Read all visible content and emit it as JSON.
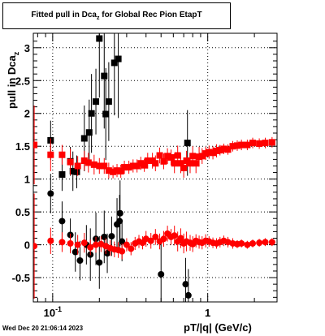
{
  "chart_data": {
    "type": "scatter",
    "title": "Fitted pull in Dca",
    "title_sub": "z",
    "title_suffix": " for Global Rec Pion EtapT",
    "xlabel": "pT/|q| (GeV/c)",
    "ylabel": "pull in Dca",
    "ylabel_sub": "z",
    "xscale": "log",
    "xlim": [
      0.075,
      2.8
    ],
    "ylim": [
      -0.87,
      3.22
    ],
    "grid": true,
    "x_ticks": [
      {
        "value": 0.1,
        "base": "10",
        "exp": "-1"
      },
      {
        "value": 1,
        "base": "1",
        "exp": ""
      }
    ],
    "y_ticks": [
      {
        "value": -0.5,
        "label": "-0.5"
      },
      {
        "value": 0,
        "label": "0"
      },
      {
        "value": 0.5,
        "label": "0.5"
      },
      {
        "value": 1,
        "label": "1"
      },
      {
        "value": 1.5,
        "label": "1.5"
      },
      {
        "value": 2,
        "label": "2"
      },
      {
        "value": 2.5,
        "label": "2.5"
      },
      {
        "value": 3,
        "label": "3"
      }
    ],
    "series": [
      {
        "color": "#000000",
        "marker": "square",
        "points": [
          [
            0.097,
            1.59,
            0.3
          ],
          [
            0.115,
            1.07,
            0.25
          ],
          [
            0.13,
            1.27,
            0.22
          ],
          [
            0.135,
            1.12,
            0.3
          ],
          [
            0.143,
            1.11,
            0.25
          ],
          [
            0.16,
            1.62,
            0.5
          ],
          [
            0.172,
            1.71,
            0.5
          ],
          [
            0.178,
            2.0,
            0.6
          ],
          [
            0.19,
            2.18,
            0.5
          ],
          [
            0.2,
            3.14,
            0.9
          ],
          [
            0.215,
            2.57,
            0.8
          ],
          [
            0.22,
            1.99,
            0.7
          ],
          [
            0.23,
            2.18,
            0.6
          ],
          [
            0.25,
            2.77,
            0.8
          ],
          [
            0.265,
            2.83,
            0.9
          ],
          [
            0.74,
            1.55,
            0.5
          ]
        ]
      },
      {
        "color": "#000000",
        "marker": "circle",
        "points": [
          [
            0.097,
            0.78,
            0.3
          ],
          [
            0.115,
            0.36,
            0.3
          ],
          [
            0.13,
            0.15,
            0.25
          ],
          [
            0.14,
            -0.11,
            0.3
          ],
          [
            0.15,
            -0.24,
            0.3
          ],
          [
            0.165,
            0.0,
            0.3
          ],
          [
            0.175,
            -0.15,
            0.4
          ],
          [
            0.19,
            0.09,
            0.4
          ],
          [
            0.2,
            -0.27,
            0.4
          ],
          [
            0.215,
            0.12,
            0.4
          ],
          [
            0.225,
            -0.13,
            0.3
          ],
          [
            0.24,
            0.13,
            0.3
          ],
          [
            0.26,
            0.31,
            0.4
          ],
          [
            0.27,
            0.36,
            0.4
          ],
          [
            0.272,
            0.48,
            0.5
          ],
          [
            0.28,
            0.05,
            0.3
          ],
          [
            0.5,
            -0.45,
            0.5
          ],
          [
            0.72,
            -0.6,
            0.4
          ],
          [
            0.75,
            -0.77,
            0.4
          ]
        ]
      },
      {
        "color": "#ff0000",
        "marker": "square",
        "points": [
          [
            0.076,
            1.52,
            0.6
          ],
          [
            0.097,
            1.37,
            0.25
          ],
          [
            0.115,
            1.37,
            0.15
          ],
          [
            0.13,
            1.26,
            0.2
          ],
          [
            0.145,
            1.2,
            0.15
          ],
          [
            0.16,
            1.28,
            0.15
          ],
          [
            0.17,
            1.25,
            0.15
          ],
          [
            0.185,
            1.22,
            0.15
          ],
          [
            0.2,
            1.2,
            0.12
          ],
          [
            0.215,
            1.2,
            0.12
          ],
          [
            0.23,
            1.13,
            0.12
          ],
          [
            0.245,
            1.11,
            0.1
          ],
          [
            0.26,
            1.13,
            0.1
          ],
          [
            0.275,
            1.12,
            0.1
          ],
          [
            0.29,
            1.18,
            0.1
          ],
          [
            0.31,
            1.18,
            0.1
          ],
          [
            0.33,
            1.2,
            0.1
          ],
          [
            0.35,
            1.2,
            0.1
          ],
          [
            0.37,
            1.24,
            0.1
          ],
          [
            0.39,
            1.21,
            0.1
          ],
          [
            0.41,
            1.28,
            0.12
          ],
          [
            0.44,
            1.28,
            0.12
          ],
          [
            0.46,
            1.24,
            0.12
          ],
          [
            0.49,
            1.36,
            0.12
          ],
          [
            0.52,
            1.27,
            0.12
          ],
          [
            0.55,
            1.35,
            0.12
          ],
          [
            0.58,
            1.33,
            0.12
          ],
          [
            0.61,
            1.24,
            0.15
          ],
          [
            0.64,
            1.36,
            0.15
          ],
          [
            0.67,
            1.24,
            0.15
          ],
          [
            0.7,
            1.17,
            0.15
          ],
          [
            0.73,
            1.28,
            0.15
          ],
          [
            0.77,
            1.24,
            0.15
          ],
          [
            0.8,
            1.35,
            0.15
          ],
          [
            0.84,
            1.24,
            0.15
          ],
          [
            0.88,
            1.34,
            0.15
          ],
          [
            0.92,
            1.35,
            0.12
          ],
          [
            0.97,
            1.39,
            0.1
          ],
          [
            1.02,
            1.41,
            0.1
          ],
          [
            1.08,
            1.4,
            0.1
          ],
          [
            1.14,
            1.43,
            0.1
          ],
          [
            1.2,
            1.44,
            0.08
          ],
          [
            1.27,
            1.46,
            0.08
          ],
          [
            1.35,
            1.45,
            0.08
          ],
          [
            1.45,
            1.5,
            0.08
          ],
          [
            1.55,
            1.51,
            0.08
          ],
          [
            1.65,
            1.52,
            0.08
          ],
          [
            1.8,
            1.52,
            0.08
          ],
          [
            1.95,
            1.55,
            0.08
          ],
          [
            2.15,
            1.54,
            0.08
          ],
          [
            2.35,
            1.55,
            0.08
          ],
          [
            2.6,
            1.56,
            0.08
          ]
        ]
      },
      {
        "color": "#ff0000",
        "marker": "circle",
        "points": [
          [
            0.076,
            -0.02,
            0.8
          ],
          [
            0.097,
            0.06,
            0.2
          ],
          [
            0.115,
            0.04,
            0.15
          ],
          [
            0.13,
            0.02,
            0.15
          ],
          [
            0.145,
            0.0,
            0.15
          ],
          [
            0.16,
            0.03,
            0.15
          ],
          [
            0.175,
            -0.04,
            0.12
          ],
          [
            0.19,
            0.0,
            0.12
          ],
          [
            0.205,
            0.01,
            0.12
          ],
          [
            0.22,
            -0.02,
            0.12
          ],
          [
            0.235,
            -0.05,
            0.12
          ],
          [
            0.25,
            -0.07,
            0.12
          ],
          [
            0.265,
            -0.08,
            0.12
          ],
          [
            0.28,
            -0.1,
            0.12
          ],
          [
            0.3,
            0.0,
            0.1
          ],
          [
            0.32,
            -0.06,
            0.1
          ],
          [
            0.34,
            0.02,
            0.1
          ],
          [
            0.36,
            0.05,
            0.1
          ],
          [
            0.38,
            0.03,
            0.1
          ],
          [
            0.4,
            0.09,
            0.12
          ],
          [
            0.43,
            0.06,
            0.12
          ],
          [
            0.46,
            0.12,
            0.12
          ],
          [
            0.49,
            0.05,
            0.12
          ],
          [
            0.52,
            0.09,
            0.12
          ],
          [
            0.55,
            0.17,
            0.12
          ],
          [
            0.58,
            0.12,
            0.12
          ],
          [
            0.61,
            0.14,
            0.15
          ],
          [
            0.64,
            0.05,
            0.15
          ],
          [
            0.67,
            0.1,
            0.15
          ],
          [
            0.7,
            0.02,
            0.15
          ],
          [
            0.73,
            0.05,
            0.15
          ],
          [
            0.77,
            0.03,
            0.12
          ],
          [
            0.8,
            0.01,
            0.12
          ],
          [
            0.84,
            0.06,
            0.1
          ],
          [
            0.88,
            0.04,
            0.1
          ],
          [
            0.92,
            0.03,
            0.1
          ],
          [
            0.97,
            0.06,
            0.1
          ],
          [
            1.02,
            0.05,
            0.08
          ],
          [
            1.08,
            0.03,
            0.08
          ],
          [
            1.14,
            0.02,
            0.08
          ],
          [
            1.2,
            0.04,
            0.08
          ],
          [
            1.27,
            0.06,
            0.08
          ],
          [
            1.35,
            0.04,
            0.08
          ],
          [
            1.45,
            0.02,
            0.08
          ],
          [
            1.55,
            0.01,
            0.06
          ],
          [
            1.65,
            0.02,
            0.06
          ],
          [
            1.8,
            0.0,
            0.06
          ],
          [
            1.95,
            0.02,
            0.06
          ],
          [
            2.15,
            0.03,
            0.06
          ],
          [
            2.35,
            0.04,
            0.06
          ],
          [
            2.6,
            0.04,
            0.06
          ]
        ]
      }
    ]
  },
  "footer": {
    "timestamp": "Wed Dec 20 21:06:14 2023"
  }
}
